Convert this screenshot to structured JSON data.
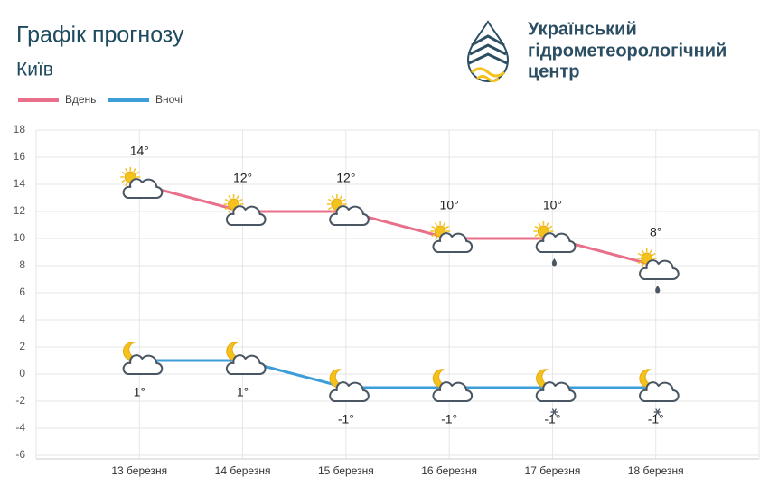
{
  "chart_data": {
    "type": "line",
    "title": "Графік прогнозу",
    "subtitle": "Київ",
    "logo_text": [
      "Український",
      "гідрометеорологічний",
      "центр"
    ],
    "categories": [
      "13 березня",
      "14 березня",
      "15 березня",
      "16 березня",
      "17 березня",
      "18 березня"
    ],
    "series": [
      {
        "name": "Вдень",
        "color": "#e8708a",
        "values": [
          14,
          12,
          12,
          10,
          10,
          8
        ],
        "value_labels": [
          "14°",
          "12°",
          "12°",
          "10°",
          "10°",
          "8°"
        ]
      },
      {
        "name": "Вночі",
        "color": "#3d9dd8",
        "values": [
          1,
          1,
          -1,
          -1,
          -1,
          -1
        ],
        "value_labels": [
          "1°",
          "1°",
          "-1°",
          "-1°",
          "-1°",
          "-1°"
        ]
      }
    ],
    "ylim": [
      -6,
      18
    ],
    "yticks": [
      -6,
      -4,
      -2,
      0,
      2,
      4,
      6,
      8,
      10,
      12,
      14,
      16,
      18
    ],
    "grid": true,
    "legend": "top-left"
  }
}
